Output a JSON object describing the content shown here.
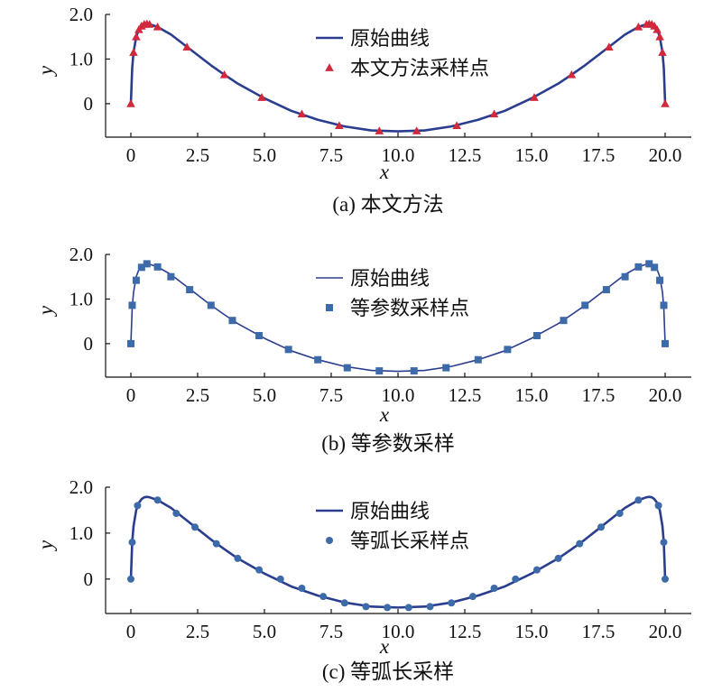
{
  "colors": {
    "curve": "#2a3d8f",
    "sample_a": "#d1283c",
    "sample_b": "#3d6aa8",
    "sample_c": "#3d6aa8",
    "axis": "#111111"
  },
  "panels": [
    {
      "caption": "(a) 本文方法",
      "legend": {
        "curve_label": "原始曲线",
        "sample_label": "本文方法采样点"
      },
      "sample_marker": "triangle"
    },
    {
      "caption": "(b) 等参数采样",
      "legend": {
        "curve_label": "原始曲线",
        "sample_label": "等参数采样点"
      },
      "sample_marker": "square"
    },
    {
      "caption": "(c) 等弧长采样",
      "legend": {
        "curve_label": "原始曲线",
        "sample_label": "等弧长采样点"
      },
      "sample_marker": "circle"
    }
  ],
  "chart_data": [
    {
      "type": "line",
      "xlabel": "x",
      "ylabel": "y",
      "xlim": [
        0,
        20
      ],
      "ylim": [
        -0.75,
        2.0
      ],
      "xticks": [
        "0",
        "2.5",
        "5.0",
        "7.5",
        "10.0",
        "12.5",
        "15.0",
        "17.5",
        "20.0"
      ],
      "yticks": [
        "0",
        "1.0",
        "2.0"
      ],
      "legend_position": "top-center",
      "series": [
        {
          "name": "原始曲线",
          "x": [
            0,
            0.05,
            0.1,
            0.2,
            0.3,
            0.4,
            0.5,
            0.6,
            0.7,
            0.8,
            1.0,
            1.5,
            2.0,
            2.5,
            3.0,
            3.5,
            4.0,
            5.0,
            6.0,
            7.0,
            8.0,
            9.0,
            10.0,
            11.0,
            12.0,
            13.0,
            14.0,
            15.0,
            16.0,
            16.5,
            17.0,
            17.5,
            18.0,
            18.5,
            19.0,
            19.2,
            19.3,
            19.4,
            19.5,
            19.6,
            19.7,
            19.8,
            19.9,
            19.95,
            20.0
          ],
          "y": [
            0,
            0.8,
            1.15,
            1.5,
            1.66,
            1.74,
            1.78,
            1.79,
            1.78,
            1.76,
            1.72,
            1.55,
            1.32,
            1.09,
            0.86,
            0.65,
            0.45,
            0.12,
            -0.16,
            -0.36,
            -0.51,
            -0.6,
            -0.62,
            -0.6,
            -0.51,
            -0.36,
            -0.16,
            0.12,
            0.45,
            0.65,
            0.86,
            1.09,
            1.32,
            1.55,
            1.72,
            1.76,
            1.78,
            1.79,
            1.78,
            1.74,
            1.66,
            1.5,
            1.15,
            0.8,
            0
          ]
        },
        {
          "name": "本文方法采样点",
          "x": [
            0,
            0.1,
            0.2,
            0.3,
            0.4,
            0.5,
            0.6,
            0.7,
            1.0,
            2.1,
            3.5,
            4.9,
            6.4,
            7.8,
            9.3,
            10.7,
            12.2,
            13.6,
            15.1,
            16.5,
            17.9,
            19.0,
            19.3,
            19.4,
            19.5,
            19.6,
            19.7,
            19.8,
            19.9,
            20.0
          ],
          "y": [
            0,
            1.15,
            1.5,
            1.66,
            1.74,
            1.78,
            1.79,
            1.78,
            1.72,
            1.27,
            0.65,
            0.14,
            -0.23,
            -0.49,
            -0.61,
            -0.61,
            -0.49,
            -0.23,
            0.14,
            0.65,
            1.27,
            1.72,
            1.78,
            1.79,
            1.78,
            1.74,
            1.66,
            1.5,
            1.15,
            0
          ]
        }
      ]
    },
    {
      "type": "line",
      "xlabel": "x",
      "ylabel": "y",
      "xlim": [
        0,
        20
      ],
      "ylim": [
        -0.75,
        2.0
      ],
      "xticks": [
        "0",
        "2.5",
        "5.0",
        "7.5",
        "10.0",
        "12.5",
        "15.0",
        "17.5",
        "20.0"
      ],
      "yticks": [
        "0",
        "1.0",
        "2.0"
      ],
      "legend_position": "top-center",
      "series": [
        {
          "name": "原始曲线",
          "x": [
            0,
            0.05,
            0.1,
            0.2,
            0.3,
            0.4,
            0.5,
            0.6,
            0.7,
            0.8,
            1.0,
            1.5,
            2.0,
            2.5,
            3.0,
            3.5,
            4.0,
            5.0,
            6.0,
            7.0,
            8.0,
            9.0,
            10.0,
            11.0,
            12.0,
            13.0,
            14.0,
            15.0,
            16.0,
            16.5,
            17.0,
            17.5,
            18.0,
            18.5,
            19.0,
            19.2,
            19.3,
            19.4,
            19.5,
            19.6,
            19.7,
            19.8,
            19.9,
            19.95,
            20.0
          ],
          "y": [
            0,
            0.8,
            1.15,
            1.5,
            1.66,
            1.74,
            1.78,
            1.79,
            1.78,
            1.76,
            1.72,
            1.55,
            1.32,
            1.09,
            0.86,
            0.65,
            0.45,
            0.12,
            -0.16,
            -0.36,
            -0.51,
            -0.6,
            -0.62,
            -0.6,
            -0.51,
            -0.36,
            -0.16,
            0.12,
            0.45,
            0.65,
            0.86,
            1.09,
            1.32,
            1.55,
            1.72,
            1.76,
            1.78,
            1.79,
            1.78,
            1.74,
            1.66,
            1.5,
            1.15,
            0.8,
            0
          ]
        },
        {
          "name": "等参数采样点",
          "x": [
            0,
            0.05,
            0.2,
            0.4,
            0.6,
            1.0,
            1.5,
            2.2,
            3.0,
            3.8,
            4.8,
            5.9,
            7.0,
            8.1,
            9.3,
            10.6,
            11.8,
            13.0,
            14.1,
            15.2,
            16.2,
            17.0,
            17.8,
            18.5,
            19.0,
            19.4,
            19.6,
            19.8,
            19.95,
            20.0
          ],
          "y": [
            0,
            0.86,
            1.42,
            1.71,
            1.79,
            1.72,
            1.5,
            1.21,
            0.86,
            0.52,
            0.18,
            -0.13,
            -0.36,
            -0.54,
            -0.61,
            -0.61,
            -0.54,
            -0.36,
            -0.13,
            0.18,
            0.52,
            0.86,
            1.21,
            1.5,
            1.72,
            1.79,
            1.71,
            1.42,
            0.86,
            0
          ]
        }
      ]
    },
    {
      "type": "line",
      "xlabel": "x",
      "ylabel": "y",
      "xlim": [
        0,
        20
      ],
      "ylim": [
        -0.75,
        2.0
      ],
      "xticks": [
        "0",
        "2.5",
        "5.0",
        "7.5",
        "10.0",
        "12.5",
        "15.0",
        "17.5",
        "20.0"
      ],
      "yticks": [
        "0",
        "1.0",
        "2.0"
      ],
      "legend_position": "top-center",
      "series": [
        {
          "name": "原始曲线",
          "x": [
            0,
            0.05,
            0.1,
            0.2,
            0.3,
            0.4,
            0.5,
            0.6,
            0.7,
            0.8,
            1.0,
            1.5,
            2.0,
            2.5,
            3.0,
            3.5,
            4.0,
            5.0,
            6.0,
            7.0,
            8.0,
            9.0,
            10.0,
            11.0,
            12.0,
            13.0,
            14.0,
            15.0,
            16.0,
            16.5,
            17.0,
            17.5,
            18.0,
            18.5,
            19.0,
            19.2,
            19.3,
            19.4,
            19.5,
            19.6,
            19.7,
            19.8,
            19.9,
            19.95,
            20.0
          ],
          "y": [
            0,
            0.8,
            1.15,
            1.5,
            1.66,
            1.74,
            1.78,
            1.79,
            1.78,
            1.76,
            1.72,
            1.55,
            1.32,
            1.09,
            0.86,
            0.65,
            0.45,
            0.12,
            -0.16,
            -0.36,
            -0.51,
            -0.6,
            -0.62,
            -0.6,
            -0.51,
            -0.36,
            -0.16,
            0.12,
            0.45,
            0.65,
            0.86,
            1.09,
            1.32,
            1.55,
            1.72,
            1.76,
            1.78,
            1.79,
            1.78,
            1.74,
            1.66,
            1.5,
            1.15,
            0.8,
            0
          ]
        },
        {
          "name": "等弧长采样点",
          "x": [
            0,
            0.05,
            0.25,
            1.0,
            1.7,
            2.4,
            3.2,
            4.0,
            4.8,
            5.6,
            6.4,
            7.2,
            8.0,
            8.8,
            9.6,
            10.4,
            11.2,
            12.0,
            12.8,
            13.6,
            14.4,
            15.2,
            16.0,
            16.8,
            17.6,
            18.3,
            19.0,
            19.75,
            19.95,
            20.0
          ],
          "y": [
            0,
            0.8,
            1.6,
            1.72,
            1.43,
            1.13,
            0.77,
            0.45,
            0.2,
            0.0,
            -0.2,
            -0.38,
            -0.52,
            -0.6,
            -0.62,
            -0.62,
            -0.6,
            -0.52,
            -0.38,
            -0.2,
            0.0,
            0.2,
            0.45,
            0.77,
            1.13,
            1.43,
            1.72,
            1.6,
            0.8,
            0
          ]
        }
      ]
    }
  ]
}
